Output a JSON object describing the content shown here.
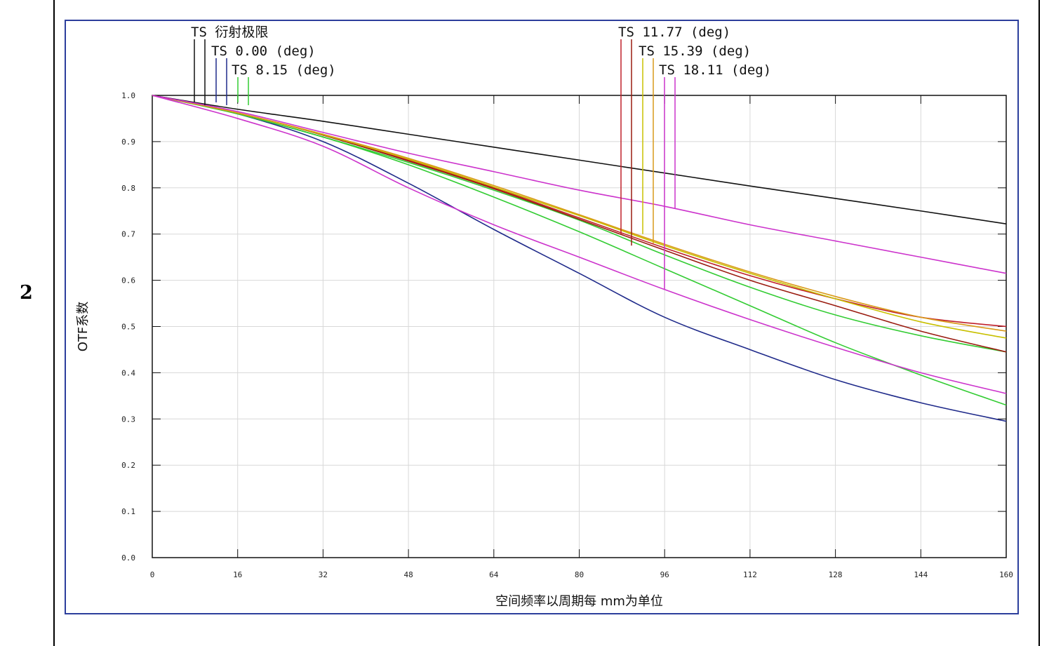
{
  "row_label": "2",
  "chart_data": {
    "type": "line",
    "title": "",
    "xlabel": "空间频率以周期每 mm为单位",
    "ylabel": "OTF系数",
    "xlim": [
      0,
      160
    ],
    "ylim": [
      0,
      1
    ],
    "x_ticks": [
      0,
      16,
      32,
      48,
      64,
      80,
      96,
      112,
      128,
      144,
      160
    ],
    "x_tick_labels": [
      "0",
      "16",
      "32",
      "48",
      "64",
      "80",
      "96",
      "112",
      "128",
      "144",
      "160"
    ],
    "y_ticks": [
      0,
      0.1,
      0.2,
      0.3,
      0.4,
      0.5,
      0.6,
      0.7,
      0.8,
      0.9,
      1.0
    ],
    "y_tick_labels": [
      "0.0",
      "0.1",
      "0.2",
      "0.3",
      "0.4",
      "0.5",
      "0.6",
      "0.7",
      "0.8",
      "0.9",
      "1.0"
    ],
    "grid": true,
    "legend_placement": "top",
    "legend": [
      {
        "label": "TS 衍射极限",
        "colors": [
          "#111111",
          "#111111"
        ]
      },
      {
        "label": "TS 0.00 (deg)",
        "colors": [
          "#1f2a8a",
          "#1f2a8a"
        ]
      },
      {
        "label": "TS 8.15 (deg)",
        "colors": [
          "#33cc33",
          "#33cc33"
        ]
      },
      {
        "label": "TS 11.77 (deg)",
        "colors": [
          "#c0202a",
          "#9a1c10"
        ]
      },
      {
        "label": "TS 15.39 (deg)",
        "colors": [
          "#c8c000",
          "#d99a1a"
        ]
      },
      {
        "label": "TS 18.11 (deg)",
        "colors": [
          "#cc33cc",
          "#cc33cc"
        ]
      }
    ],
    "series": [
      {
        "color": "#111111",
        "x": [
          0,
          16,
          32,
          48,
          64,
          80,
          96,
          112,
          128,
          144,
          160
        ],
        "y": [
          1.0,
          0.97,
          0.944,
          0.916,
          0.888,
          0.86,
          0.832,
          0.804,
          0.777,
          0.75,
          0.722
        ]
      },
      {
        "color": "#1f2a8a",
        "x": [
          0,
          16,
          32,
          48,
          64,
          80,
          96,
          112,
          128,
          144,
          160
        ],
        "y": [
          1.0,
          0.96,
          0.9,
          0.81,
          0.71,
          0.615,
          0.52,
          0.45,
          0.385,
          0.335,
          0.295
        ]
      },
      {
        "color": "#33cc33",
        "x": [
          0,
          16,
          32,
          48,
          64,
          80,
          96,
          112,
          128,
          144,
          160
        ],
        "y": [
          1.0,
          0.96,
          0.91,
          0.85,
          0.78,
          0.705,
          0.625,
          0.545,
          0.465,
          0.395,
          0.33
        ]
      },
      {
        "color": "#33cc33",
        "x": [
          0,
          16,
          32,
          48,
          64,
          80,
          96,
          112,
          128,
          144,
          160
        ],
        "y": [
          1.0,
          0.96,
          0.91,
          0.855,
          0.795,
          0.73,
          0.655,
          0.585,
          0.525,
          0.48,
          0.445
        ]
      },
      {
        "color": "#c0202a",
        "x": [
          0,
          16,
          32,
          48,
          64,
          80,
          96,
          112,
          128,
          144,
          160
        ],
        "y": [
          1.0,
          0.962,
          0.915,
          0.86,
          0.8,
          0.735,
          0.67,
          0.61,
          0.56,
          0.52,
          0.5
        ]
      },
      {
        "color": "#9a1c10",
        "x": [
          0,
          16,
          32,
          48,
          64,
          80,
          96,
          112,
          128,
          144,
          160
        ],
        "y": [
          1.0,
          0.962,
          0.914,
          0.858,
          0.798,
          0.732,
          0.665,
          0.6,
          0.545,
          0.49,
          0.445
        ]
      },
      {
        "color": "#c8c000",
        "x": [
          0,
          16,
          32,
          48,
          64,
          80,
          96,
          112,
          128,
          144,
          160
        ],
        "y": [
          1.0,
          0.962,
          0.915,
          0.862,
          0.802,
          0.74,
          0.675,
          0.615,
          0.56,
          0.51,
          0.475
        ]
      },
      {
        "color": "#d99a1a",
        "x": [
          0,
          16,
          32,
          48,
          64,
          80,
          96,
          112,
          128,
          144,
          160
        ],
        "y": [
          1.0,
          0.962,
          0.916,
          0.864,
          0.805,
          0.742,
          0.678,
          0.618,
          0.565,
          0.52,
          0.49
        ]
      },
      {
        "color": "#cc33cc",
        "x": [
          0,
          16,
          32,
          48,
          64,
          80,
          96,
          112,
          128,
          144,
          160
        ],
        "y": [
          1.0,
          0.965,
          0.92,
          0.875,
          0.835,
          0.795,
          0.76,
          0.72,
          0.685,
          0.65,
          0.615
        ]
      },
      {
        "color": "#cc33cc",
        "x": [
          0,
          16,
          32,
          48,
          64,
          80,
          96,
          112,
          128,
          144,
          160
        ],
        "y": [
          1.0,
          0.95,
          0.89,
          0.8,
          0.72,
          0.65,
          0.58,
          0.515,
          0.455,
          0.4,
          0.355
        ]
      }
    ]
  }
}
